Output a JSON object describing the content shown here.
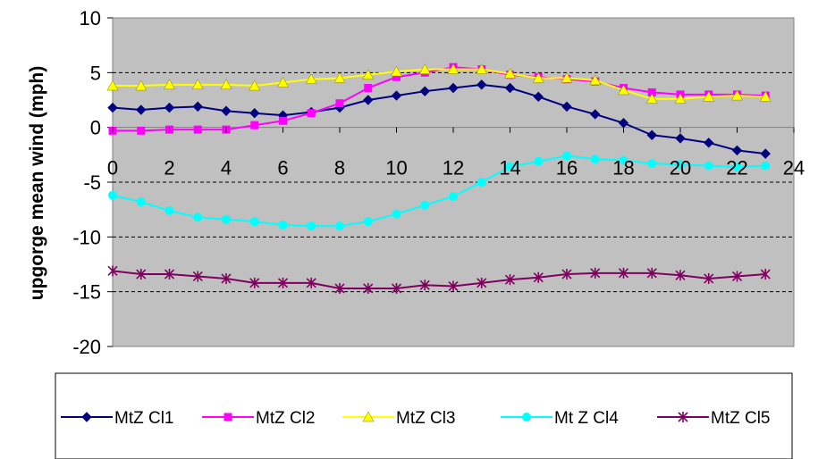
{
  "chart_data": {
    "type": "line",
    "title": "",
    "xlabel": "",
    "ylabel": "upgorge mean wind (mph)",
    "xlim": [
      0,
      24
    ],
    "ylim": [
      -20,
      10
    ],
    "x_ticks": [
      0,
      2,
      4,
      6,
      8,
      10,
      12,
      14,
      16,
      18,
      20,
      22,
      24
    ],
    "y_ticks": [
      10,
      5,
      0,
      -5,
      -10,
      -15,
      -20
    ],
    "gridlines": [
      5,
      -5,
      -10,
      -15
    ],
    "grid": true,
    "plot_background": "#c0c0c0",
    "legend_position": "bottom",
    "x": [
      0,
      1,
      2,
      3,
      4,
      5,
      6,
      7,
      8,
      9,
      10,
      11,
      12,
      13,
      14,
      15,
      16,
      17,
      18,
      19,
      20,
      21,
      22,
      23
    ],
    "series": [
      {
        "name": "MtZ Cl1",
        "color": "#000080",
        "marker": "diamond",
        "values": [
          1.8,
          1.6,
          1.8,
          1.9,
          1.5,
          1.3,
          1.1,
          1.4,
          1.8,
          2.5,
          2.9,
          3.3,
          3.6,
          3.9,
          3.6,
          2.8,
          1.9,
          1.2,
          0.4,
          -0.7,
          -1.0,
          -1.4,
          -2.1,
          -2.4
        ]
      },
      {
        "name": "MtZ Cl2",
        "color": "#ff00ff",
        "marker": "square",
        "values": [
          -0.3,
          -0.3,
          -0.2,
          -0.2,
          -0.2,
          0.2,
          0.6,
          1.3,
          2.2,
          3.6,
          4.6,
          5.0,
          5.5,
          5.3,
          4.8,
          4.6,
          4.4,
          4.2,
          3.6,
          3.2,
          3.0,
          3.0,
          3.0,
          2.9
        ]
      },
      {
        "name": "MtZ Cl3",
        "color": "#ffff00",
        "marker": "triangle",
        "values": [
          3.8,
          3.8,
          3.9,
          3.9,
          3.9,
          3.8,
          4.1,
          4.4,
          4.5,
          4.8,
          5.1,
          5.3,
          5.3,
          5.3,
          4.9,
          4.5,
          4.5,
          4.3,
          3.4,
          2.6,
          2.6,
          2.8,
          2.9,
          2.8
        ]
      },
      {
        "name": "Mt  Z Cl4",
        "color": "#00ffff",
        "marker": "circle",
        "values": [
          -6.2,
          -6.8,
          -7.6,
          -8.2,
          -8.4,
          -8.6,
          -8.9,
          -9.0,
          -9.0,
          -8.6,
          -7.9,
          -7.1,
          -6.3,
          -5.0,
          -3.6,
          -3.1,
          -2.6,
          -2.9,
          -3.0,
          -3.3,
          -3.4,
          -3.5,
          -3.6,
          -3.5
        ]
      },
      {
        "name": "MtZ Cl5",
        "color": "#800060",
        "marker": "star",
        "values": [
          -13.1,
          -13.4,
          -13.4,
          -13.6,
          -13.8,
          -14.2,
          -14.2,
          -14.2,
          -14.7,
          -14.7,
          -14.7,
          -14.4,
          -14.5,
          -14.2,
          -13.9,
          -13.7,
          -13.4,
          -13.3,
          -13.3,
          -13.3,
          -13.5,
          -13.8,
          -13.6,
          -13.4
        ]
      }
    ]
  }
}
